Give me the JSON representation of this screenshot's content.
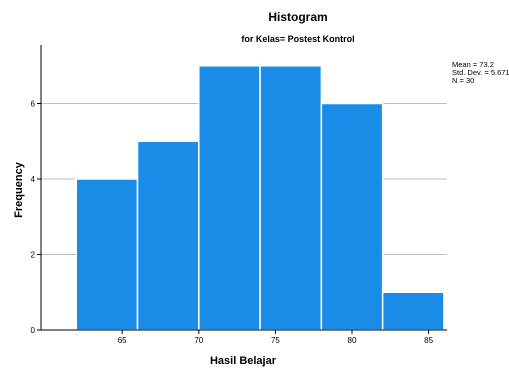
{
  "chart_data": {
    "type": "bar",
    "title": "Histogram",
    "subtitle": "for Kelas= Postest Kontrol",
    "xlabel": "Hasil Belajar",
    "ylabel": "Frequency",
    "bins": [
      {
        "start": 62,
        "end": 66,
        "count": 4
      },
      {
        "start": 66,
        "end": 70,
        "count": 5
      },
      {
        "start": 70,
        "end": 74,
        "count": 7
      },
      {
        "start": 74,
        "end": 78,
        "count": 7
      },
      {
        "start": 78,
        "end": 82,
        "count": 6
      },
      {
        "start": 82,
        "end": 86,
        "count": 1
      }
    ],
    "xlim": [
      59.7,
      86.2
    ],
    "ylim": [
      0,
      7.55
    ],
    "x_ticks": [
      "65",
      "70",
      "75",
      "80",
      "85"
    ],
    "y_ticks": [
      "0",
      "2",
      "4",
      "6"
    ],
    "grid": true,
    "bar_color": "#1a8ce8",
    "stats": [
      "Mean = 73.2",
      "Std. Dev. = 5.671",
      "N = 30"
    ]
  }
}
